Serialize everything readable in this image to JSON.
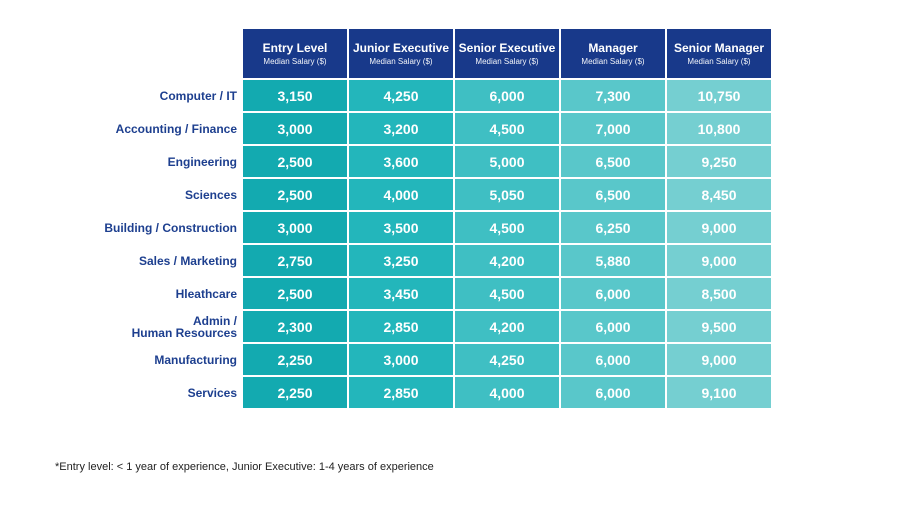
{
  "chart_data": {
    "type": "table",
    "title": "",
    "columns": [
      {
        "title": "Entry Level",
        "subtitle": "Median Salary ($)"
      },
      {
        "title": "Junior Executive",
        "subtitle": "Median Salary ($)"
      },
      {
        "title": "Senior Executive",
        "subtitle": "Median Salary ($)"
      },
      {
        "title": "Manager",
        "subtitle": "Median Salary ($)"
      },
      {
        "title": "Senior Manager",
        "subtitle": "Median Salary ($)"
      }
    ],
    "rows": [
      {
        "label": "Computer / IT",
        "values": [
          "3,150",
          "4,250",
          "6,000",
          "7,300",
          "10,750"
        ]
      },
      {
        "label": "Accounting / Finance",
        "values": [
          "3,000",
          "3,200",
          "4,500",
          "7,000",
          "10,800"
        ]
      },
      {
        "label": "Engineering",
        "values": [
          "2,500",
          "3,600",
          "5,000",
          "6,500",
          "9,250"
        ]
      },
      {
        "label": "Sciences",
        "values": [
          "2,500",
          "4,000",
          "5,050",
          "6,500",
          "8,450"
        ]
      },
      {
        "label": "Building / Construction",
        "values": [
          "3,000",
          "3,500",
          "4,500",
          "6,250",
          "9,000"
        ]
      },
      {
        "label": "Sales / Marketing",
        "values": [
          "2,750",
          "3,250",
          "4,200",
          "5,880",
          "9,000"
        ]
      },
      {
        "label": "Hleathcare",
        "values": [
          "2,500",
          "3,450",
          "4,500",
          "6,000",
          "8,500"
        ]
      },
      {
        "label": "Admin /\nHuman Resources",
        "values": [
          "2,300",
          "2,850",
          "4,200",
          "6,000",
          "9,500"
        ]
      },
      {
        "label": "Manufacturing",
        "values": [
          "2,250",
          "3,000",
          "4,250",
          "6,000",
          "9,000"
        ]
      },
      {
        "label": "Services",
        "values": [
          "2,250",
          "2,850",
          "4,000",
          "6,000",
          "9,100"
        ]
      }
    ],
    "footnote": "*Entry level: < 1 year of experience, Junior Executive: 1-4 years of experience",
    "colors": {
      "header": "#18398a",
      "row_label": "#1d3f8f",
      "columns": [
        "#13aab0",
        "#23b6bb",
        "#3fbfc3",
        "#59c7ca",
        "#75cfd1"
      ]
    }
  }
}
